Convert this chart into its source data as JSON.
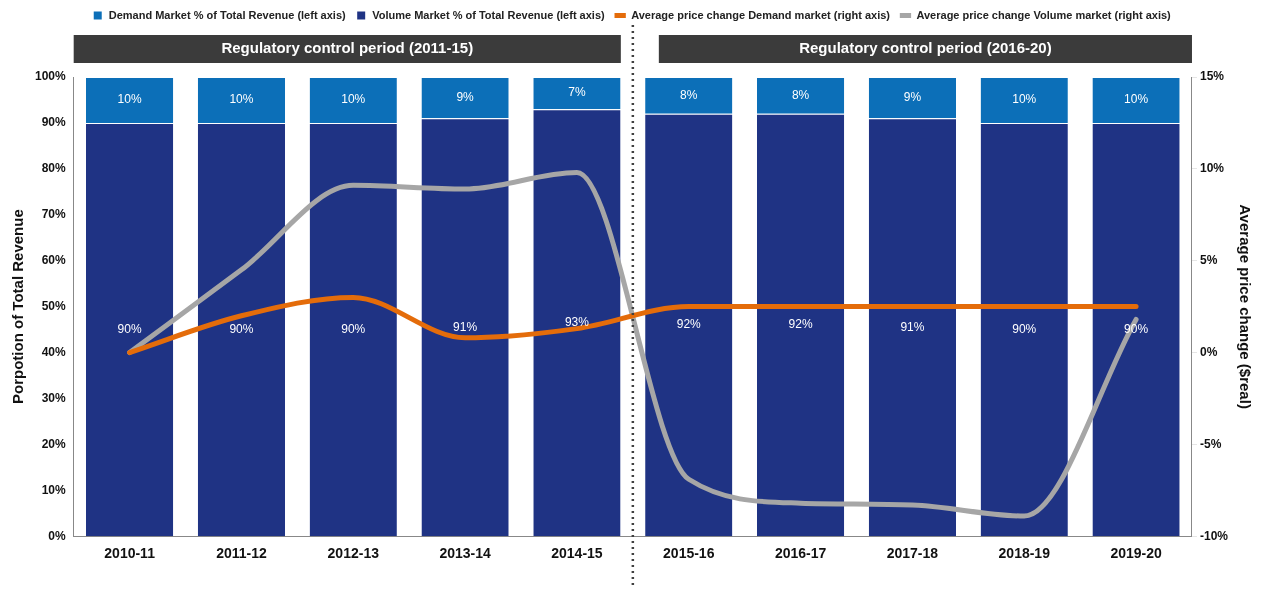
{
  "chart_data": {
    "type": "bar",
    "stacked": true,
    "categories": [
      "2010-11",
      "2011-12",
      "2012-13",
      "2013-14",
      "2014-15",
      "2015-16",
      "2016-17",
      "2017-18",
      "2018-19",
      "2019-20"
    ],
    "series": [
      {
        "name": "Volume Market % of Total Revenue (left axis)",
        "color": "#1f3384",
        "values": [
          90,
          90,
          90,
          91,
          93,
          92,
          92,
          91,
          90,
          90
        ],
        "value_labels": [
          "90%",
          "90%",
          "90%",
          "91%",
          "93%",
          "92%",
          "92%",
          "91%",
          "90%",
          "90%"
        ]
      },
      {
        "name": "Demand Market % of Total Revenue (left axis)",
        "color": "#0c6fb8",
        "values": [
          10,
          10,
          10,
          9,
          7,
          8,
          8,
          9,
          10,
          10
        ],
        "value_labels": [
          "10%",
          "10%",
          "10%",
          "9%",
          "7%",
          "8%",
          "8%",
          "9%",
          "10%",
          "10%"
        ]
      },
      {
        "name": "Average price change Demand market (right axis)",
        "type": "line",
        "axis": "y2",
        "color": "#e46c0a",
        "values": [
          0,
          2.0,
          3.0,
          0.8,
          1.3,
          2.5,
          2.5,
          2.5,
          2.5,
          2.5
        ]
      },
      {
        "name": "Average price change Volume market (right axis)",
        "type": "line",
        "axis": "y2",
        "color": "#a6a6a6",
        "values": [
          0,
          4.5,
          9.1,
          8.9,
          9.8,
          -6.9,
          -8.2,
          -8.3,
          -8.9,
          1.8
        ]
      }
    ],
    "ylabel": "Porpotion of Total Revenue",
    "y2label": "Average price change ($real)",
    "ylim": [
      0,
      100
    ],
    "yticks": [
      {
        "value": 0,
        "label": "0%"
      },
      {
        "value": 10,
        "label": "10%"
      },
      {
        "value": 20,
        "label": "20%"
      },
      {
        "value": 30,
        "label": "30%"
      },
      {
        "value": 40,
        "label": "40%"
      },
      {
        "value": 50,
        "label": "50%"
      },
      {
        "value": 60,
        "label": "60%"
      },
      {
        "value": 70,
        "label": "70%"
      },
      {
        "value": 80,
        "label": "80%"
      },
      {
        "value": 90,
        "label": "90%"
      },
      {
        "value": 100,
        "label": "100%"
      }
    ],
    "y2lim": [
      -10,
      15
    ],
    "y2ticks": [
      {
        "value": -10,
        "label": "-10%"
      },
      {
        "value": -5,
        "label": "-5%"
      },
      {
        "value": 0,
        "label": "0%"
      },
      {
        "value": 5,
        "label": "5%"
      },
      {
        "value": 10,
        "label": "10%"
      },
      {
        "value": 15,
        "label": "15%"
      }
    ],
    "annotations": [
      "Regulatory control period (2011-15)",
      "Regulatory control period (2016-20)"
    ],
    "grid": false,
    "legend": "top",
    "marker": "none"
  }
}
